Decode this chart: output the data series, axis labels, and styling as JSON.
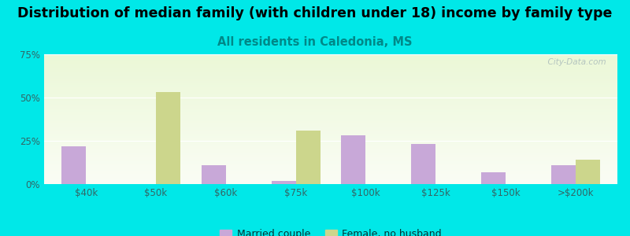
{
  "title": "Distribution of median family (with children under 18) income by family type",
  "subtitle": "All residents in Caledonia, MS",
  "categories": [
    "$40k",
    "$50k",
    "$60k",
    "$75k",
    "$100k",
    "$125k",
    "$150k",
    ">$200k"
  ],
  "married_couple": [
    22,
    0,
    11,
    2,
    28,
    23,
    7,
    11
  ],
  "female_no_husband": [
    0,
    53,
    0,
    31,
    0,
    0,
    0,
    14
  ],
  "married_color": "#c8a8d8",
  "female_color": "#ccd68c",
  "bg_outer": "#00e8e8",
  "ylim": [
    0,
    75
  ],
  "yticks": [
    0,
    25,
    50,
    75
  ],
  "ytick_labels": [
    "0%",
    "25%",
    "50%",
    "75%"
  ],
  "watermark": "  City-Data.com",
  "title_fontsize": 12.5,
  "subtitle_fontsize": 10.5,
  "bar_width": 0.35,
  "tick_color": "#336666",
  "subtitle_color": "#008888"
}
